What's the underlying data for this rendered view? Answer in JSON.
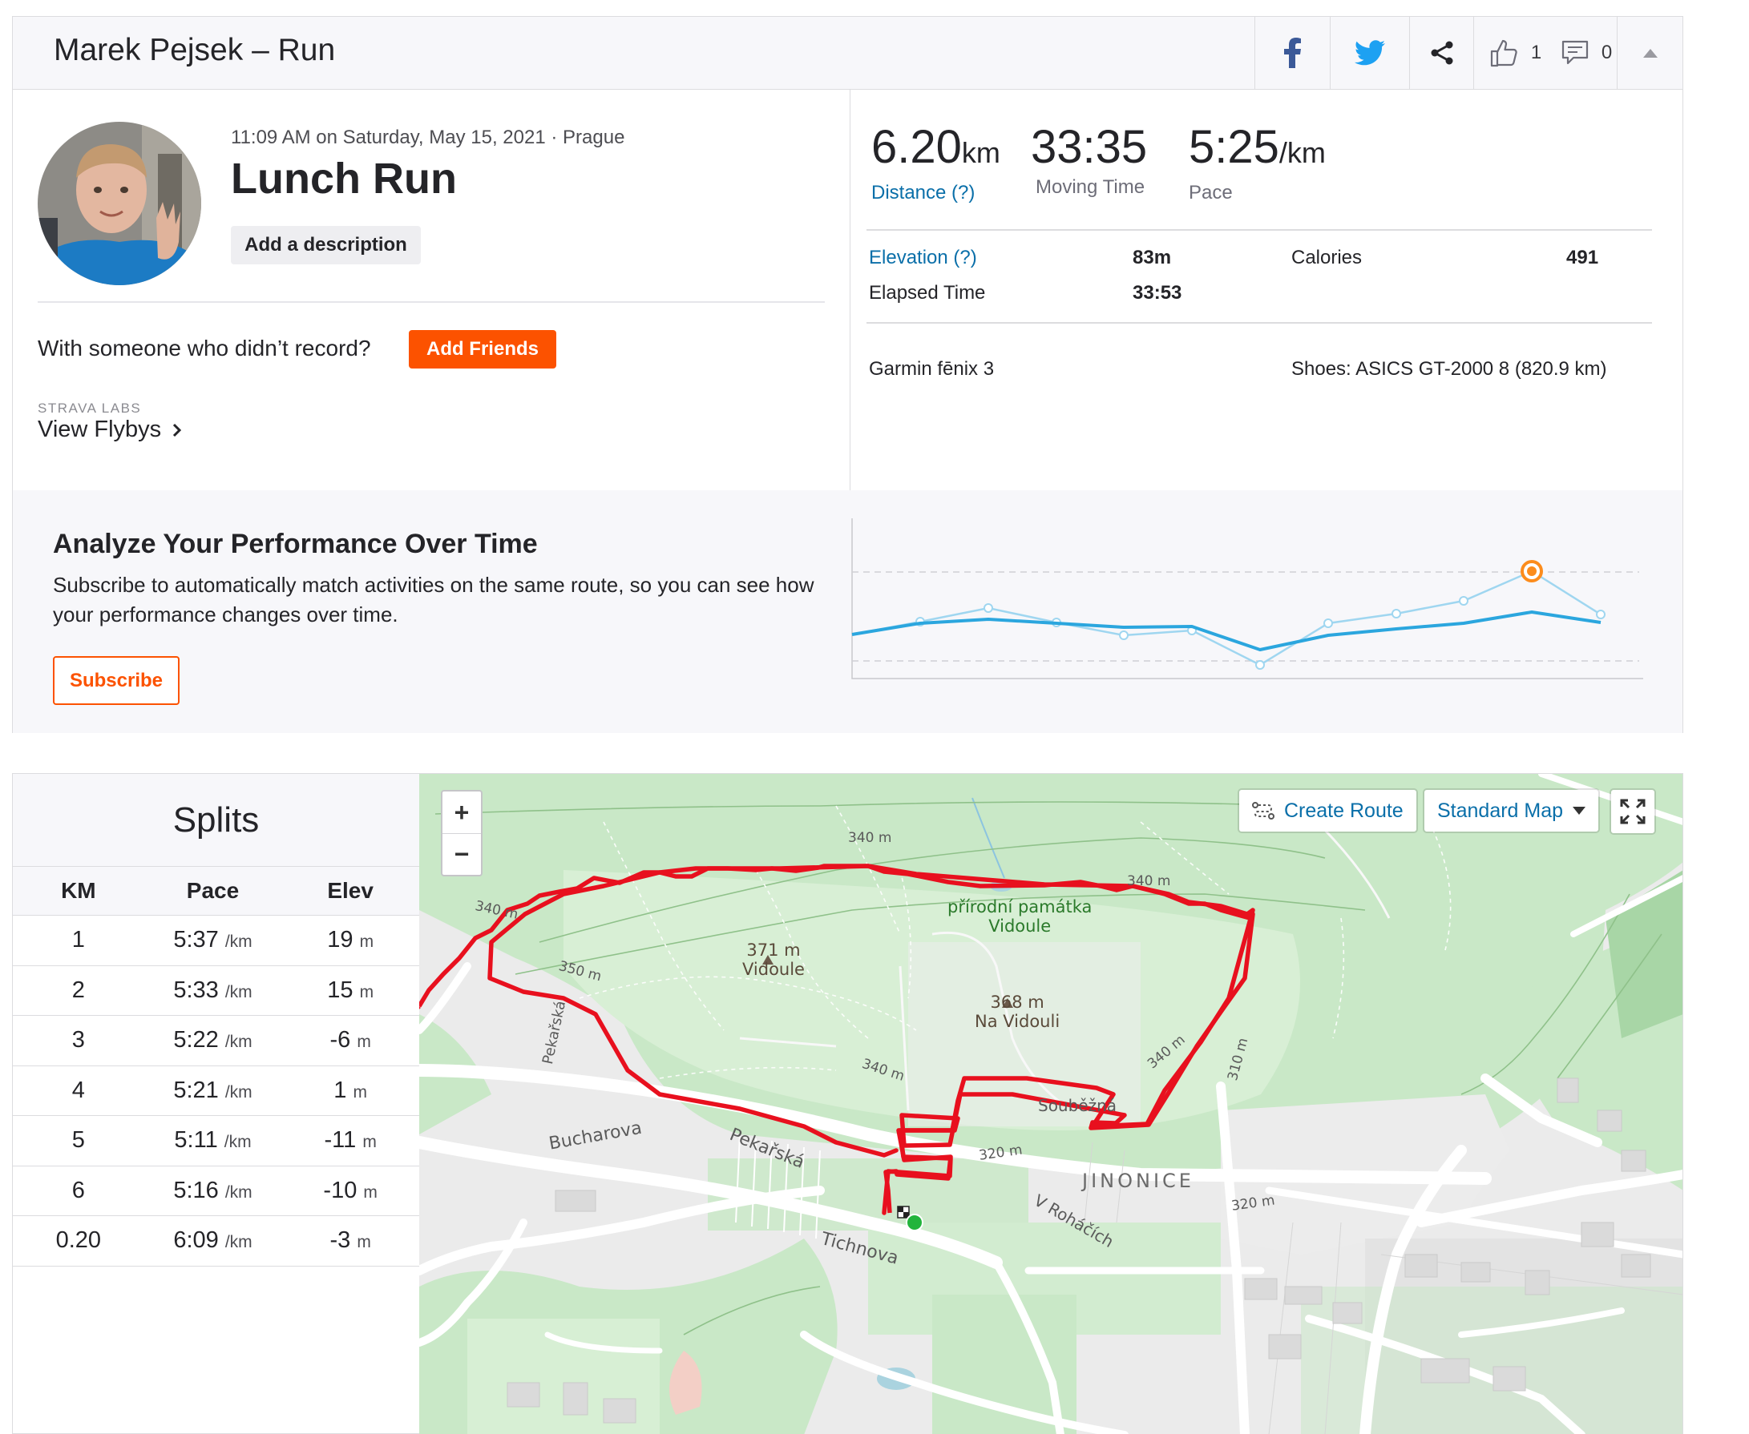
{
  "header": {
    "title": "Marek Pejsek – Run",
    "kudos_count": "1",
    "comment_count": "0",
    "icons": [
      "facebook-icon",
      "twitter-icon",
      "share-icon",
      "thumbs-up-icon",
      "comment-icon",
      "caret-up-icon"
    ]
  },
  "activity": {
    "meta": "11:09 AM on Saturday, May 15, 2021 · Prague",
    "title": "Lunch Run",
    "description_button": "Add a description",
    "with_someone": "With someone who didn’t record?",
    "add_friends": "Add Friends",
    "labs_label": "STRAVA LABS",
    "flybys": "View Flybys"
  },
  "stats": {
    "distance_value": "6.20",
    "distance_unit": "km",
    "distance_label": "Distance (?)",
    "moving_time_value": "33:35",
    "moving_time_label": "Moving Time",
    "pace_value": "5:25",
    "pace_unit": "/km",
    "pace_label": "Pace",
    "elevation_label": "Elevation (?)",
    "elevation_value": "83m",
    "calories_label": "Calories",
    "calories_value": "491",
    "elapsed_label": "Elapsed Time",
    "elapsed_value": "33:53",
    "device": "Garmin fēnix 3",
    "shoes": "Shoes: ASICS GT-2000 8 (820.9 km)"
  },
  "analyze": {
    "title": "Analyze Your Performance Over Time",
    "body": "Subscribe to automatically match activities on the same route, so you can see how your performance changes over time.",
    "subscribe": "Subscribe",
    "highlight_color": "#fc8c1c",
    "line_color": "#2ba6de"
  },
  "splits": {
    "title": "Splits",
    "columns": [
      "KM",
      "Pace",
      "Elev"
    ],
    "pace_unit": "/km",
    "elev_unit": "m",
    "rows": [
      {
        "km": "1",
        "pace": "5:37",
        "elev": "19"
      },
      {
        "km": "2",
        "pace": "5:33",
        "elev": "15"
      },
      {
        "km": "3",
        "pace": "5:22",
        "elev": "-6"
      },
      {
        "km": "4",
        "pace": "5:21",
        "elev": "1"
      },
      {
        "km": "5",
        "pace": "5:11",
        "elev": "-11"
      },
      {
        "km": "6",
        "pace": "5:16",
        "elev": "-10"
      },
      {
        "km": "0.20",
        "pace": "6:09",
        "elev": "-3"
      }
    ]
  },
  "map": {
    "zoom_in": "+",
    "zoom_out": "−",
    "create_route": "Create Route",
    "map_type": "Standard Map",
    "route_color": "#e8101e",
    "labels": {
      "peak1_elev": "371 m",
      "peak1_name": "Vidoule",
      "peak2_elev": "368 m",
      "peak2_name": "Na Vidouli",
      "reserve_line1": "přírodní památka",
      "reserve_line2": "Vidoule",
      "district": "JINONICE",
      "street_pekarska": "Pekařská",
      "street_pekarska2": "Pekařská",
      "street_bucharova": "Bucharova",
      "street_soubezna": "Souběžná",
      "street_tichnova": "Tichnova",
      "street_rohacich": "V Roháčích",
      "contour_340a": "340 m",
      "contour_340b": "340 m",
      "contour_340c": "340 m",
      "contour_340d": "340 m",
      "contour_340e": "340 m",
      "contour_350": "350 m",
      "contour_320a": "320 m",
      "contour_320b": "320 m",
      "contour_310": "310 m"
    }
  }
}
